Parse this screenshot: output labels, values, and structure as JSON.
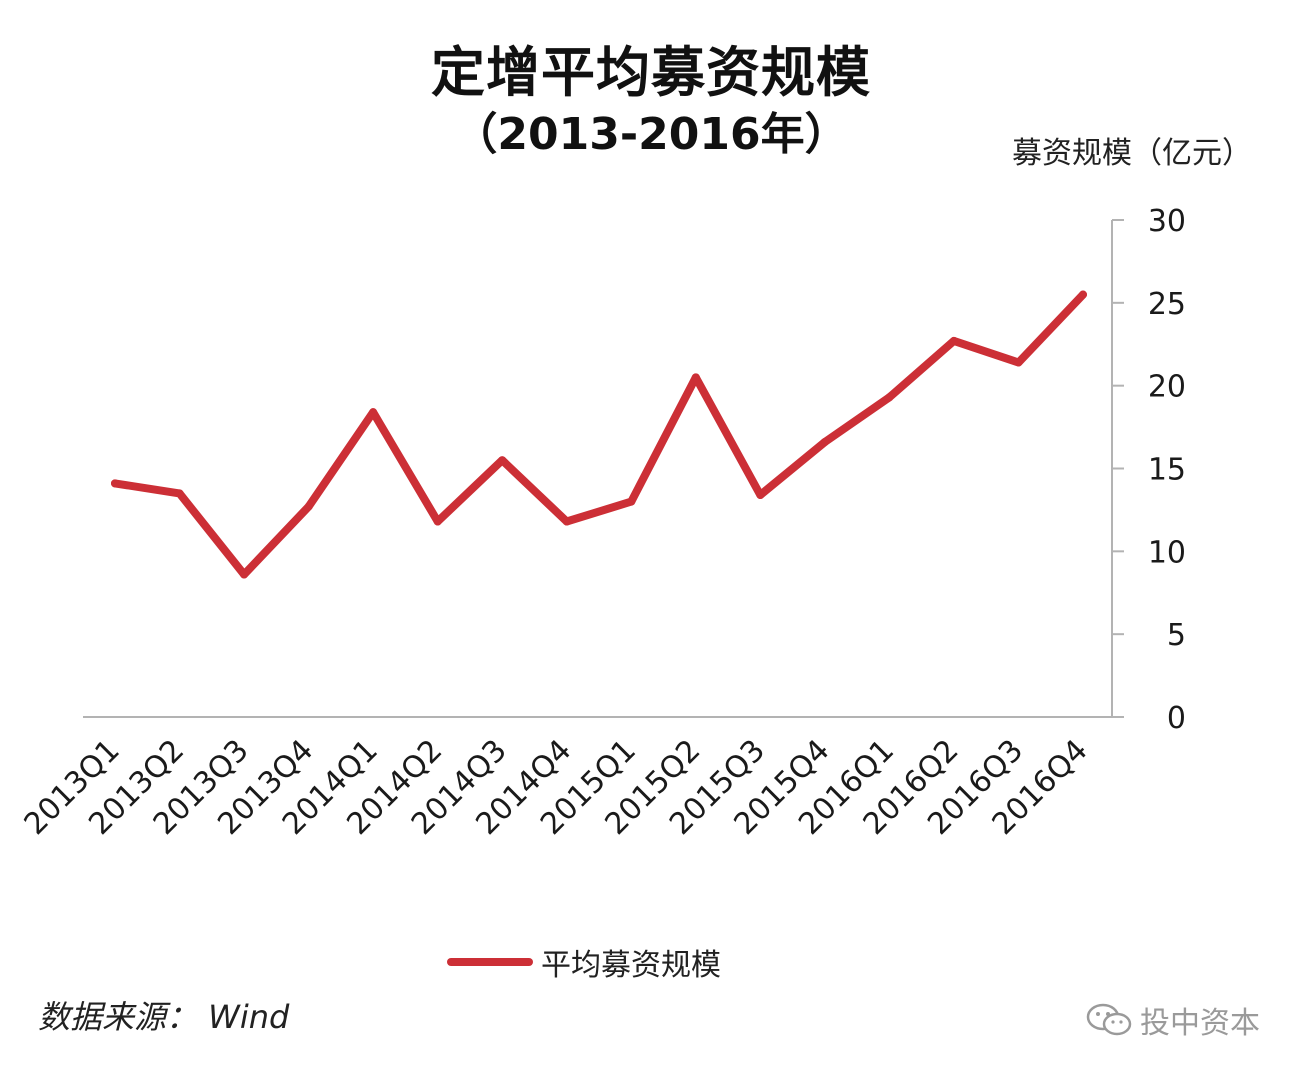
{
  "title": "定增平均募资规模",
  "subtitle": "（2013-2016年）",
  "unit_label": "募资规模（亿元）",
  "legend_label": "平均募资规模",
  "source": "数据来源： Wind",
  "watermark": "投中资本",
  "line_color": "#cc2f36",
  "chart_data": {
    "type": "line",
    "title": "定增平均募资规模（2013-2016年）",
    "ylabel": "募资规模（亿元）",
    "xlabel": "",
    "categories": [
      "2013Q1",
      "2013Q2",
      "2013Q3",
      "2013Q4",
      "2014Q1",
      "2014Q2",
      "2014Q3",
      "2014Q4",
      "2015Q1",
      "2015Q2",
      "2015Q3",
      "2015Q4",
      "2016Q1",
      "2016Q2",
      "2016Q3",
      "2016Q4"
    ],
    "series": [
      {
        "name": "平均募资规模",
        "values": [
          14.1,
          13.5,
          8.6,
          12.7,
          18.4,
          11.8,
          15.5,
          11.8,
          13.0,
          20.5,
          13.4,
          16.6,
          19.3,
          22.7,
          21.4,
          25.5
        ]
      }
    ],
    "ylim": [
      0,
      30
    ],
    "yticks": [
      0,
      5,
      10,
      15,
      20,
      25,
      30
    ],
    "yaxis_position": "right",
    "grid": false,
    "legend": "bottom"
  }
}
